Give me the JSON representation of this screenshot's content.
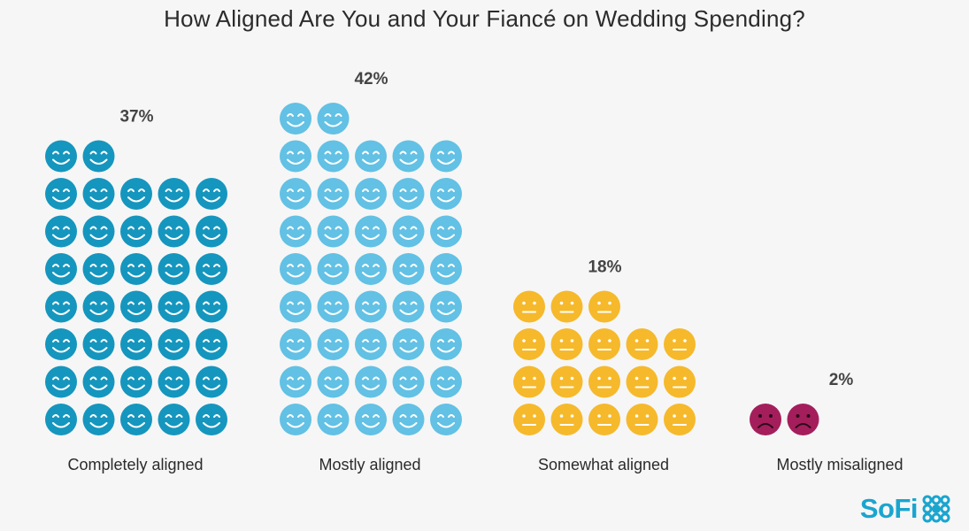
{
  "title": "How Aligned Are You and Your Fiancé on Wedding Spending?",
  "brand": {
    "name": "SoFi",
    "color": "#1aa5cf"
  },
  "chart_data": {
    "type": "pictograph",
    "unit": "%",
    "categories": [
      "Completely aligned",
      "Mostly aligned",
      "Somewhat aligned",
      "Mostly misaligned"
    ],
    "values": [
      37,
      42,
      18,
      2
    ],
    "value_labels": [
      "37%",
      "42%",
      "18%",
      "2%"
    ],
    "icon_counts": [
      37,
      42,
      18,
      2
    ],
    "icons": [
      "smile-icon",
      "smile-icon",
      "neutral-face-icon",
      "frown-icon"
    ],
    "colors": [
      "#1596be",
      "#62c1e4",
      "#f6b92b",
      "#a41e5c"
    ],
    "grid": false,
    "legend": "none"
  }
}
